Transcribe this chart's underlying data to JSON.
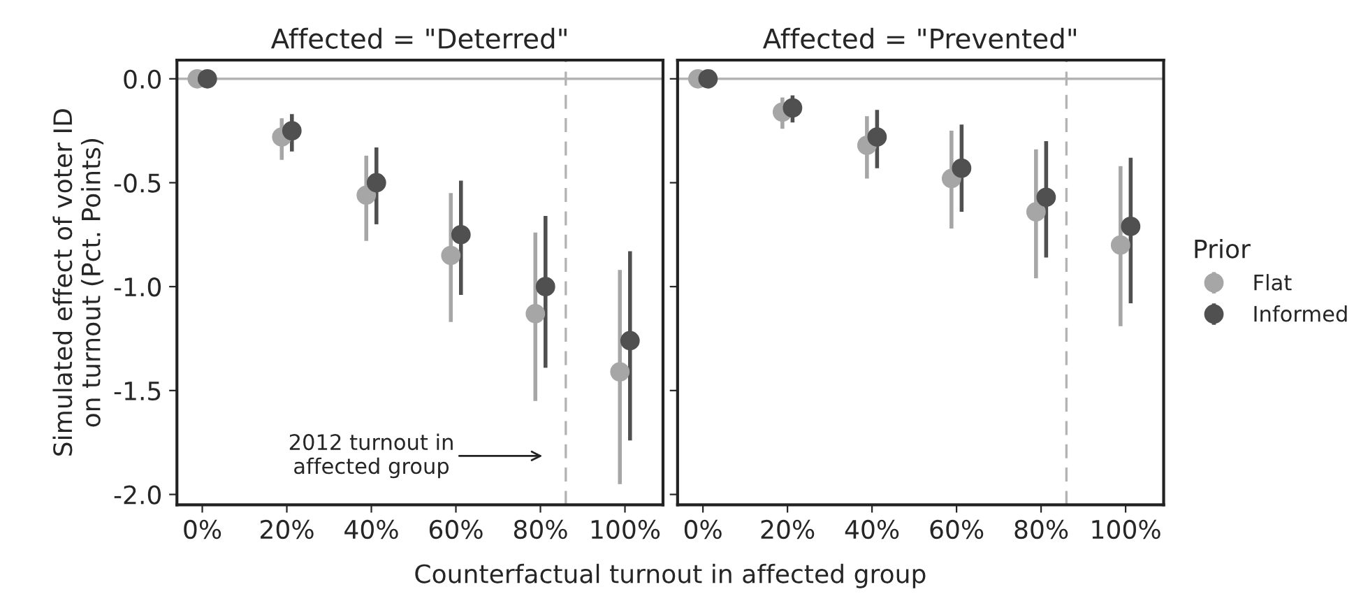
{
  "chart_data": [
    {
      "type": "scatter",
      "title": "Affected = \"Deterred\"",
      "xlabel": "Counterfactual turnout in affected group",
      "ylabel": "Simulated effect of voter ID\non turnout (Pct. Points)",
      "xlim": [
        -6,
        109
      ],
      "ylim": [
        -2.05,
        0.09
      ],
      "xticks": [
        {
          "value": 0,
          "label": "0%"
        },
        {
          "value": 20,
          "label": "20%"
        },
        {
          "value": 40,
          "label": "40%"
        },
        {
          "value": 60,
          "label": "60%"
        },
        {
          "value": 80,
          "label": "80%"
        },
        {
          "value": 100,
          "label": "100%"
        }
      ],
      "yticks": [
        {
          "value": 0,
          "label": "0.0"
        },
        {
          "value": -0.5,
          "label": "-0.5"
        },
        {
          "value": -1,
          "label": "-1.0"
        },
        {
          "value": -1.5,
          "label": "-1.5"
        },
        {
          "value": -2,
          "label": "-2.0"
        }
      ],
      "marker": "circle",
      "grid": false,
      "series": [
        {
          "color": "#a6a6a6",
          "x": [
            -1.2,
            18.8,
            38.8,
            58.8,
            78.8,
            98.8
          ],
          "values": [
            0,
            -0.28,
            -0.56,
            -0.85,
            -1.13,
            -1.41
          ],
          "errors": [
            null,
            [
              -0.39,
              -0.19
            ],
            [
              -0.78,
              -0.37
            ],
            [
              -1.17,
              -0.55
            ],
            [
              -1.55,
              -0.74
            ],
            [
              -1.95,
              -0.92
            ]
          ]
        },
        {
          "color": "#505050",
          "x": [
            1.2,
            21.2,
            41.2,
            61.2,
            81.2,
            101.2
          ],
          "values": [
            0,
            -0.25,
            -0.5,
            -0.75,
            -1.0,
            -1.26
          ],
          "errors": [
            null,
            [
              -0.35,
              -0.17
            ],
            [
              -0.7,
              -0.33
            ],
            [
              -1.04,
              -0.49
            ],
            [
              -1.39,
              -0.66
            ],
            [
              -1.74,
              -0.83
            ]
          ]
        }
      ],
      "ref_lines": [
        {
          "axis": "y",
          "value": 0,
          "color": "#b3b3b3",
          "line_style": "solid"
        },
        {
          "axis": "x",
          "value": 86,
          "color": "#b3b3b3",
          "line_style": "dashed"
        }
      ],
      "annotations": [
        "2012 turnout in\naffected group"
      ]
    },
    {
      "type": "scatter",
      "title": "Affected = \"Prevented\"",
      "xlim": [
        -6,
        109
      ],
      "ylim": [
        -2.05,
        0.09
      ],
      "xticks": [
        {
          "value": 0,
          "label": "0%"
        },
        {
          "value": 20,
          "label": "20%"
        },
        {
          "value": 40,
          "label": "40%"
        },
        {
          "value": 60,
          "label": "60%"
        },
        {
          "value": 80,
          "label": "80%"
        },
        {
          "value": 100,
          "label": "100%"
        }
      ],
      "yticks": [
        0,
        -0.5,
        -1,
        -1.5,
        -2
      ],
      "tick_labels": "x",
      "marker": "circle",
      "grid": false,
      "legend": "right",
      "legend_title": "Prior",
      "series": [
        {
          "name": "Flat",
          "color": "#a6a6a6",
          "x": [
            -1.2,
            18.8,
            38.8,
            58.8,
            78.8,
            98.8
          ],
          "values": [
            0,
            -0.16,
            -0.32,
            -0.48,
            -0.64,
            -0.8
          ],
          "errors": [
            null,
            [
              -0.24,
              -0.09
            ],
            [
              -0.48,
              -0.18
            ],
            [
              -0.72,
              -0.25
            ],
            [
              -0.96,
              -0.34
            ],
            [
              -1.19,
              -0.42
            ]
          ]
        },
        {
          "name": "Informed",
          "color": "#505050",
          "x": [
            1.2,
            21.2,
            41.2,
            61.2,
            81.2,
            101.2
          ],
          "values": [
            0,
            -0.14,
            -0.28,
            -0.43,
            -0.57,
            -0.71
          ],
          "errors": [
            null,
            [
              -0.21,
              -0.08
            ],
            [
              -0.43,
              -0.15
            ],
            [
              -0.64,
              -0.22
            ],
            [
              -0.86,
              -0.3
            ],
            [
              -1.08,
              -0.38
            ]
          ]
        }
      ],
      "ref_lines": [
        {
          "axis": "y",
          "value": 0,
          "color": "#b3b3b3",
          "line_style": "solid"
        },
        {
          "axis": "x",
          "value": 86,
          "color": "#b3b3b3",
          "line_style": "dashed"
        }
      ]
    }
  ]
}
